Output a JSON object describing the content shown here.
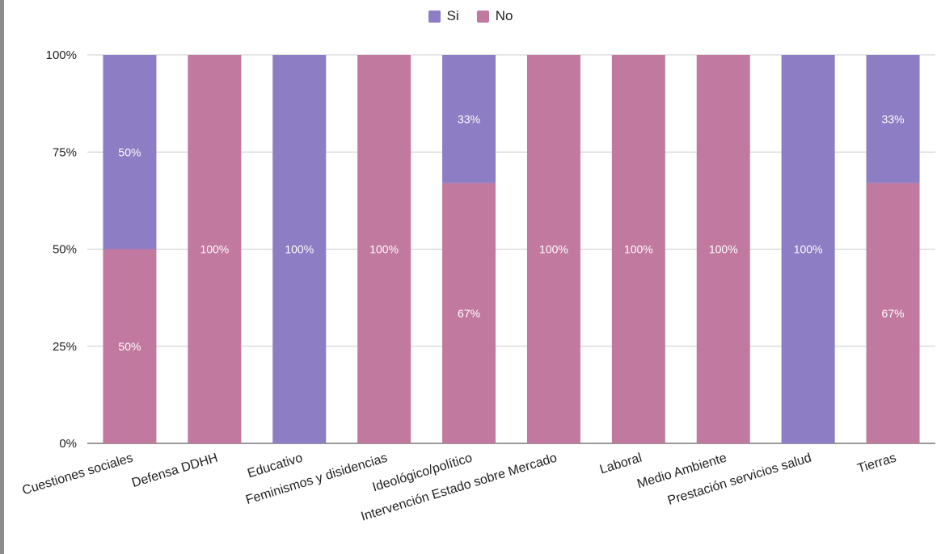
{
  "chart_data": {
    "type": "bar",
    "stacked": true,
    "percent": true,
    "categories": [
      "Cuestiones sociales",
      "Defensa DDHH",
      "Educativo",
      "Feminismos y disidencias",
      "Ideológico/político",
      "Intervención Estado sobre Mercado",
      "Laboral",
      "Medio Ambiente",
      "Prestación servicios salud",
      "Tierras"
    ],
    "series": [
      {
        "name": "No",
        "color": "#c2799f",
        "values": [
          50,
          100,
          0,
          100,
          67,
          100,
          100,
          100,
          0,
          67
        ]
      },
      {
        "name": "Si",
        "color": "#8d7dc4",
        "values": [
          50,
          0,
          100,
          0,
          33,
          0,
          0,
          0,
          100,
          33
        ]
      }
    ],
    "legend": {
      "position": "top",
      "order": [
        "Si",
        "No"
      ]
    },
    "yticks": [
      "0%",
      "25%",
      "50%",
      "75%",
      "100%"
    ],
    "ylim": [
      0,
      100
    ],
    "grid": true,
    "title": "",
    "xlabel": "",
    "ylabel": ""
  }
}
